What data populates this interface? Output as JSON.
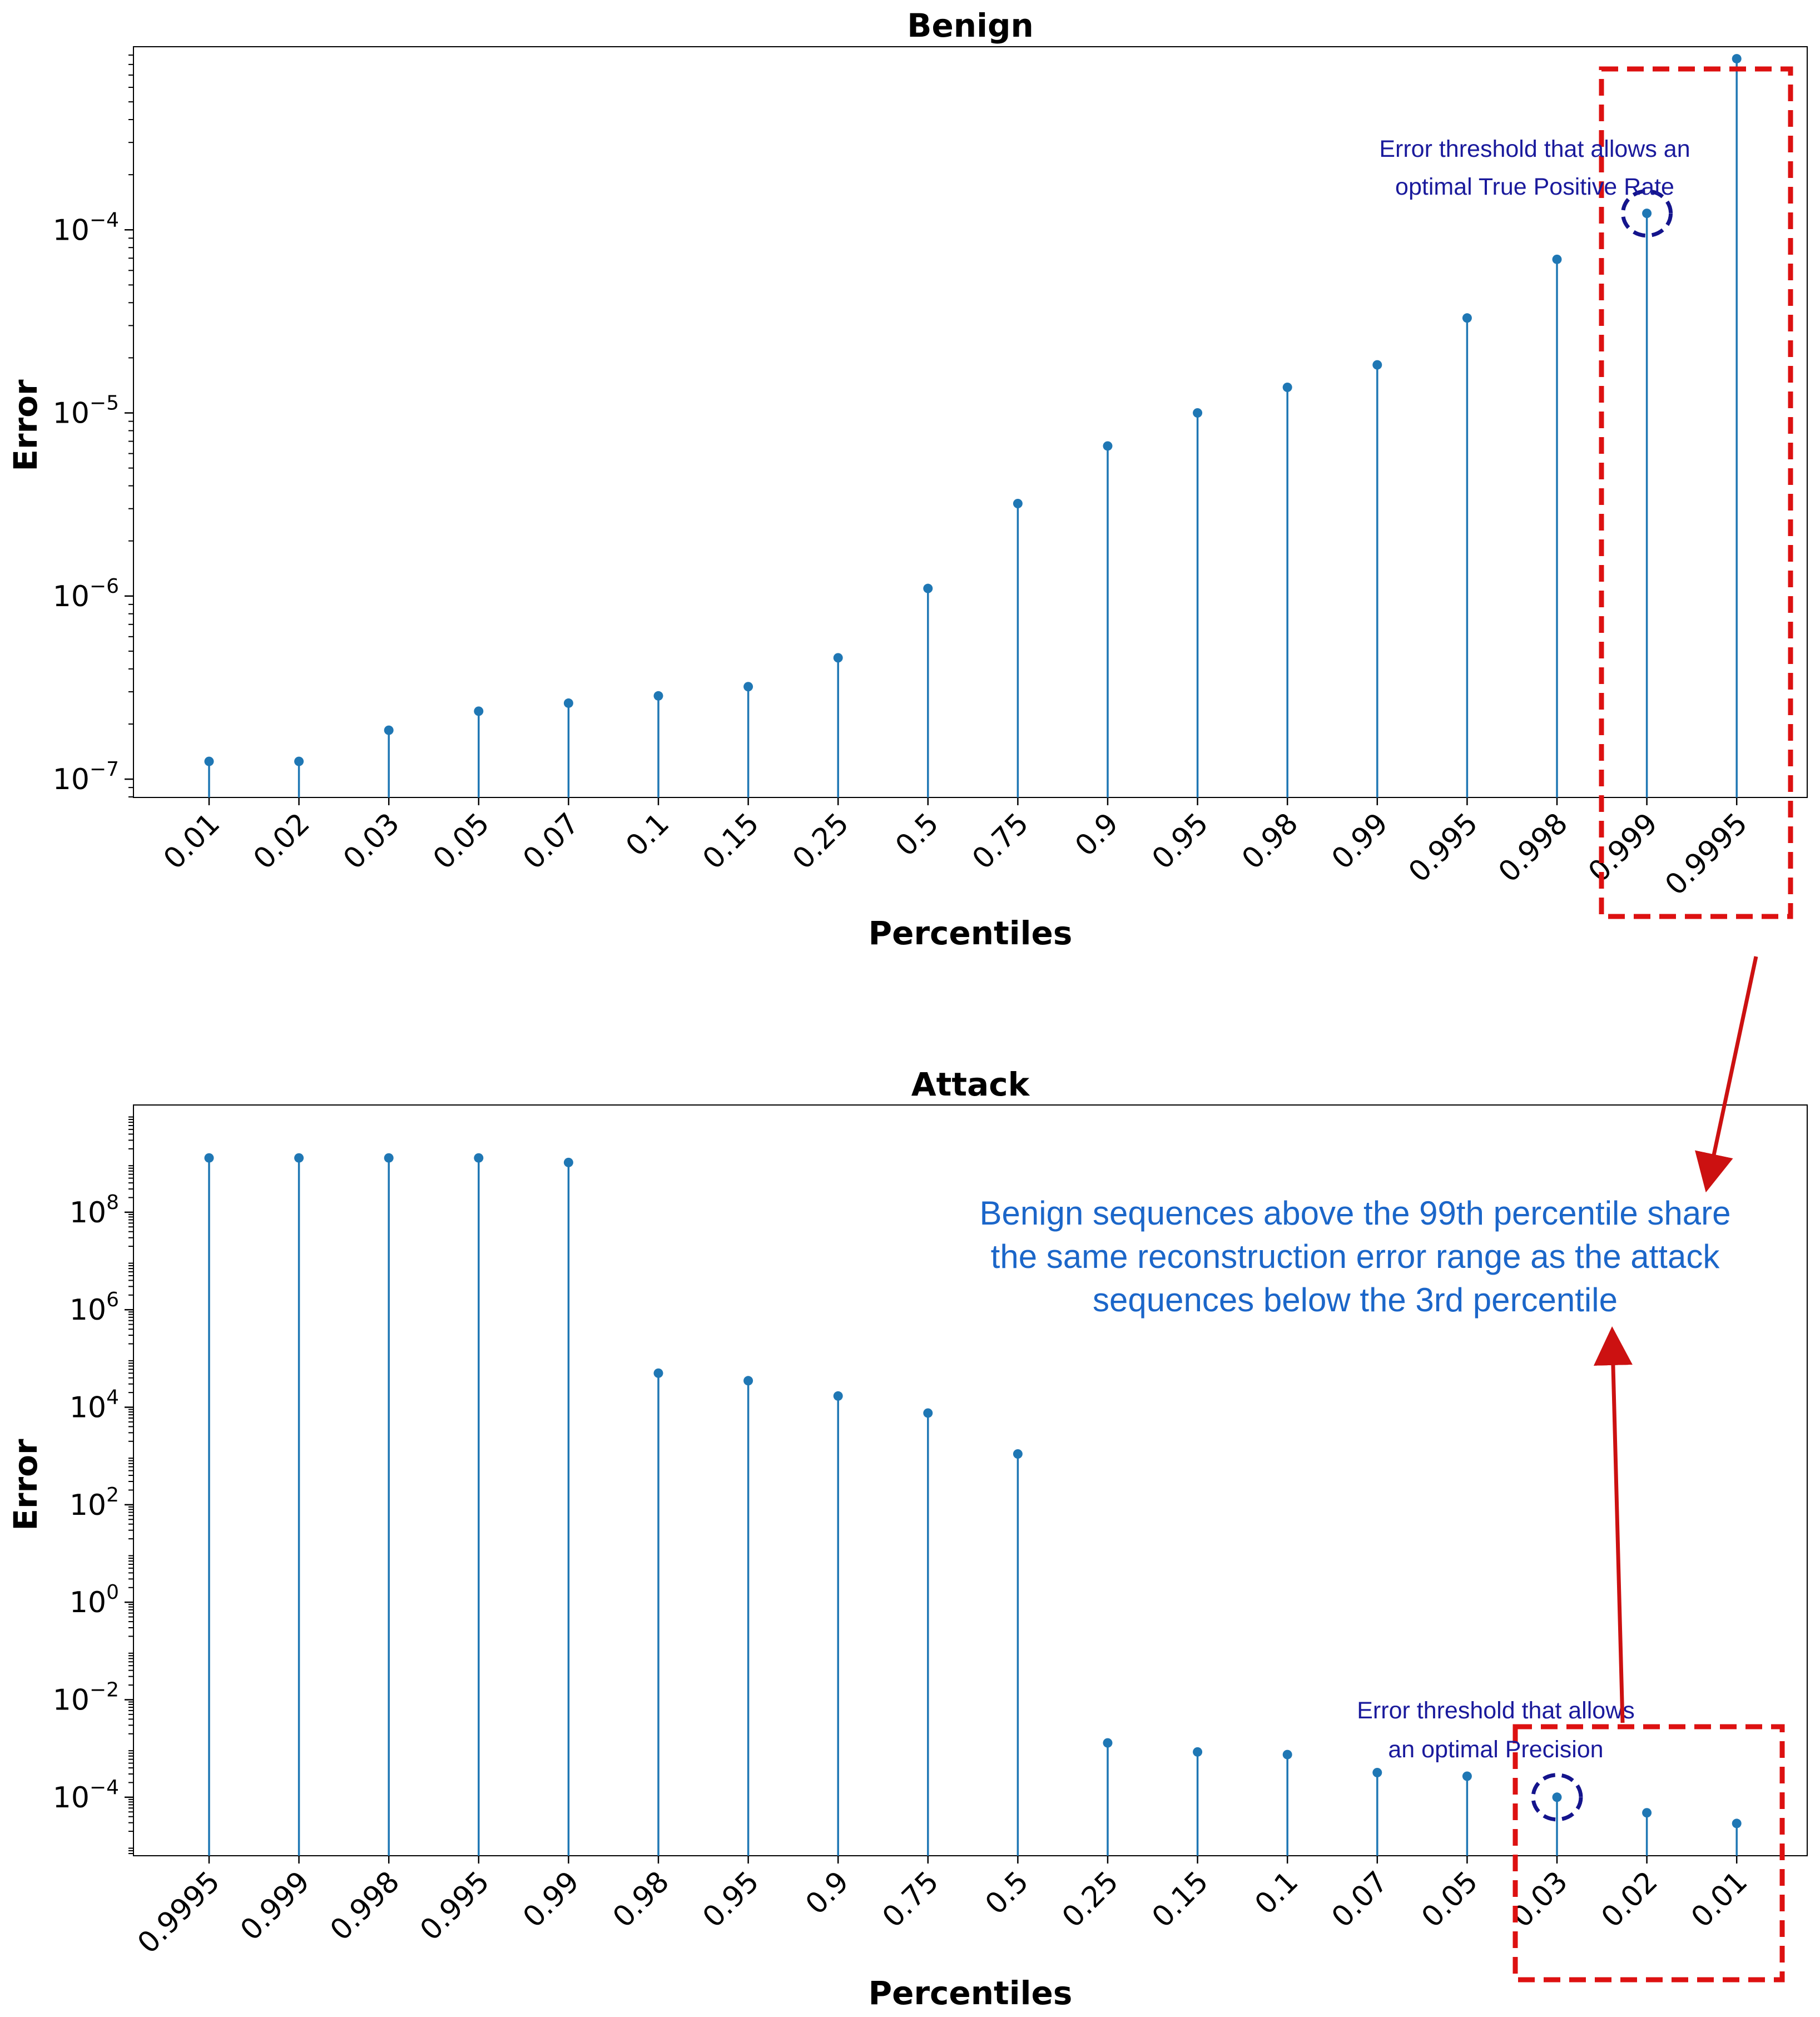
{
  "colors": {
    "stem": "#1f77b4",
    "highlight_box": "#dd1111",
    "arrow": "#cc1111",
    "circle": "#14148c",
    "annotation_small": "#1a1a9c",
    "annotation_large": "#1b66c9"
  },
  "chart_data": [
    {
      "type": "stem",
      "title": "Benign",
      "xlabel": "Percentiles",
      "ylabel": "Error",
      "yscale": "log",
      "ylim_log10": [
        -7.1,
        -3.0
      ],
      "yticks": [
        {
          "exp": -7,
          "base": "10",
          "sup": "−7"
        },
        {
          "exp": -6,
          "base": "10",
          "sup": "−6"
        },
        {
          "exp": -5,
          "base": "10",
          "sup": "−5"
        },
        {
          "exp": -4,
          "base": "10",
          "sup": "−4"
        }
      ],
      "categories": [
        "0.01",
        "0.02",
        "0.03",
        "0.05",
        "0.07",
        "0.1",
        "0.15",
        "0.25",
        "0.5",
        "0.75",
        "0.9",
        "0.95",
        "0.98",
        "0.99",
        "0.995",
        "0.998",
        "0.999",
        "0.9995"
      ],
      "values": [
        1.25e-07,
        1.25e-07,
        1.85e-07,
        2.35e-07,
        2.6e-07,
        2.85e-07,
        3.2e-07,
        4.6e-07,
        1.1e-06,
        3.2e-06,
        6.6e-06,
        1e-05,
        1.38e-05,
        1.83e-05,
        3.3e-05,
        6.9e-05,
        0.000123,
        0.00086
      ],
      "highlight": {
        "from": "0.999",
        "to": "0.9995"
      },
      "circled": "0.999",
      "annotation": [
        "Error threshold that allows an",
        "optimal True Positive Rate"
      ]
    },
    {
      "type": "stem",
      "title": "Attack",
      "xlabel": "Percentiles",
      "ylabel": "Error",
      "yscale": "log",
      "ylim_log10": [
        -5.2,
        10.2
      ],
      "yticks": [
        {
          "exp": -4,
          "base": "10",
          "sup": "−4"
        },
        {
          "exp": -2,
          "base": "10",
          "sup": "−2"
        },
        {
          "exp": 0,
          "base": "10",
          "sup": "0"
        },
        {
          "exp": 2,
          "base": "10",
          "sup": "2"
        },
        {
          "exp": 4,
          "base": "10",
          "sup": "4"
        },
        {
          "exp": 6,
          "base": "10",
          "sup": "6"
        },
        {
          "exp": 8,
          "base": "10",
          "sup": "8"
        }
      ],
      "categories": [
        "0.9995",
        "0.999",
        "0.998",
        "0.995",
        "0.99",
        "0.98",
        "0.95",
        "0.9",
        "0.75",
        "0.5",
        "0.25",
        "0.15",
        "0.1",
        "0.07",
        "0.05",
        "0.03",
        "0.02",
        "0.01"
      ],
      "values": [
        1300000000.0,
        1300000000.0,
        1300000000.0,
        1300000000.0,
        1050000000.0,
        50000.0,
        35000.0,
        17000.0,
        7600.0,
        1100.0,
        0.0013,
        0.00085,
        0.00075,
        0.00032,
        0.00027,
        0.0001,
        4.8e-05,
        2.9e-05
      ],
      "highlight": {
        "from": "0.03",
        "to": "0.01"
      },
      "circled": "0.03",
      "annotation": [
        "Error threshold that allows",
        "an optimal Precision"
      ]
    }
  ],
  "callout": [
    "Benign sequences above the 99th percentile share",
    "the same reconstruction error range as the attack",
    "sequences below the 3rd percentile"
  ]
}
